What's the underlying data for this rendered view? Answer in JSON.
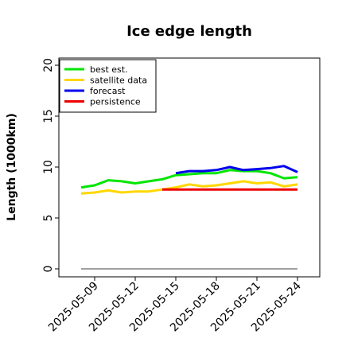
{
  "chart_data": {
    "type": "line",
    "title": "Ice edge length",
    "xlabel": "",
    "ylabel": "Length (1000km)",
    "ylim": [
      0,
      21
    ],
    "yticks": [
      0,
      5,
      10,
      15,
      20
    ],
    "xticks": [
      "2025-05-09",
      "2025-05-12",
      "2025-05-15",
      "2025-05-18",
      "2025-05-21",
      "2025-05-24"
    ],
    "highlighted_xtick": "2025-05-15",
    "highlight_color": "#228b22",
    "legend_position": "top-left",
    "grid": false,
    "series": [
      {
        "name": "best est.",
        "color": "#00e600",
        "x": [
          "2025-05-08",
          "2025-05-09",
          "2025-05-10",
          "2025-05-11",
          "2025-05-12",
          "2025-05-13",
          "2025-05-14",
          "2025-05-15",
          "2025-05-16",
          "2025-05-17",
          "2025-05-18",
          "2025-05-19",
          "2025-05-20",
          "2025-05-21",
          "2025-05-22",
          "2025-05-23",
          "2025-05-24"
        ],
        "values": [
          8.0,
          8.2,
          8.7,
          8.6,
          8.4,
          8.6,
          8.8,
          9.2,
          9.3,
          9.4,
          9.4,
          9.7,
          9.6,
          9.6,
          9.4,
          8.9,
          9.0
        ]
      },
      {
        "name": "satellite data",
        "color": "#ffd700",
        "x": [
          "2025-05-08",
          "2025-05-09",
          "2025-05-10",
          "2025-05-11",
          "2025-05-12",
          "2025-05-13",
          "2025-05-14",
          "2025-05-15",
          "2025-05-16",
          "2025-05-17",
          "2025-05-18",
          "2025-05-19",
          "2025-05-20",
          "2025-05-21",
          "2025-05-22",
          "2025-05-23",
          "2025-05-24"
        ],
        "values": [
          7.4,
          7.5,
          7.7,
          7.5,
          7.6,
          7.6,
          7.8,
          8.0,
          8.3,
          8.1,
          8.2,
          8.4,
          8.6,
          8.4,
          8.5,
          8.1,
          8.3
        ]
      },
      {
        "name": "forecast",
        "color": "#0000ee",
        "x": [
          "2025-05-15",
          "2025-05-16",
          "2025-05-17",
          "2025-05-18",
          "2025-05-19",
          "2025-05-20",
          "2025-05-21",
          "2025-05-22",
          "2025-05-23",
          "2025-05-24"
        ],
        "values": [
          9.4,
          9.6,
          9.6,
          9.7,
          10.0,
          9.7,
          9.8,
          9.9,
          10.1,
          9.5
        ]
      },
      {
        "name": "persistence",
        "color": "#ee0000",
        "x": [
          "2025-05-14",
          "2025-05-15",
          "2025-05-16",
          "2025-05-17",
          "2025-05-18",
          "2025-05-19",
          "2025-05-20",
          "2025-05-21",
          "2025-05-22",
          "2025-05-23",
          "2025-05-24"
        ],
        "values": [
          7.8,
          7.8,
          7.8,
          7.8,
          7.8,
          7.8,
          7.8,
          7.8,
          7.8,
          7.8,
          7.8
        ]
      }
    ],
    "baseline": {
      "color": "#808080",
      "value": 0,
      "x": [
        "2025-05-08",
        "2025-05-24"
      ]
    }
  }
}
